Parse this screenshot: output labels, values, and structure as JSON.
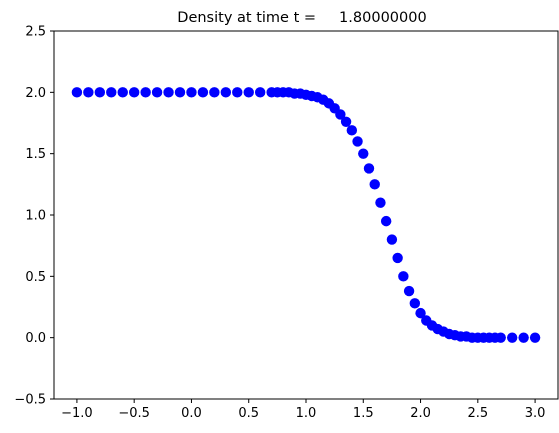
{
  "chart_data": {
    "type": "scatter",
    "title": "Density at time t =     1.80000000",
    "xlabel": "",
    "ylabel": "",
    "xlim": [
      -1.2,
      3.2
    ],
    "ylim": [
      -0.5,
      2.5
    ],
    "xticks": [
      "−1.0",
      "−0.5",
      "0.0",
      "0.5",
      "1.0",
      "1.5",
      "2.0",
      "2.5",
      "3.0"
    ],
    "yticks": [
      "−0.5",
      "0.0",
      "0.5",
      "1.0",
      "1.5",
      "2.0",
      "2.5"
    ],
    "grid": false,
    "marker_color": "#0000ff",
    "series": [
      {
        "x": [
          -1.0,
          -0.9,
          -0.8,
          -0.7,
          -0.6,
          -0.5,
          -0.4,
          -0.3,
          -0.2,
          -0.1,
          0.0,
          0.1,
          0.2,
          0.3,
          0.4,
          0.5,
          0.6,
          0.7,
          0.75,
          0.8,
          0.85,
          0.9,
          0.95,
          1.0,
          1.05,
          1.1,
          1.15,
          1.2,
          1.25,
          1.3,
          1.35,
          1.4,
          1.45,
          1.5,
          1.55,
          1.6,
          1.65,
          1.7,
          1.75,
          1.8,
          1.85,
          1.9,
          1.95,
          2.0,
          2.05,
          2.1,
          2.15,
          2.2,
          2.25,
          2.3,
          2.35,
          2.4,
          2.45,
          2.5,
          2.55,
          2.6,
          2.65,
          2.7,
          2.8,
          2.9,
          3.0
        ],
        "y": [
          2.0,
          2.0,
          2.0,
          2.0,
          2.0,
          2.0,
          2.0,
          2.0,
          2.0,
          2.0,
          2.0,
          2.0,
          2.0,
          2.0,
          2.0,
          2.0,
          2.0,
          2.0,
          2.0,
          2.0,
          2.0,
          1.99,
          1.99,
          1.98,
          1.97,
          1.96,
          1.94,
          1.91,
          1.87,
          1.82,
          1.76,
          1.69,
          1.6,
          1.5,
          1.38,
          1.25,
          1.1,
          0.95,
          0.8,
          0.65,
          0.5,
          0.38,
          0.28,
          0.2,
          0.14,
          0.1,
          0.07,
          0.05,
          0.03,
          0.02,
          0.01,
          0.01,
          0.0,
          0.0,
          0.0,
          0.0,
          0.0,
          0.0,
          0.0,
          0.0,
          0.0
        ]
      }
    ]
  }
}
